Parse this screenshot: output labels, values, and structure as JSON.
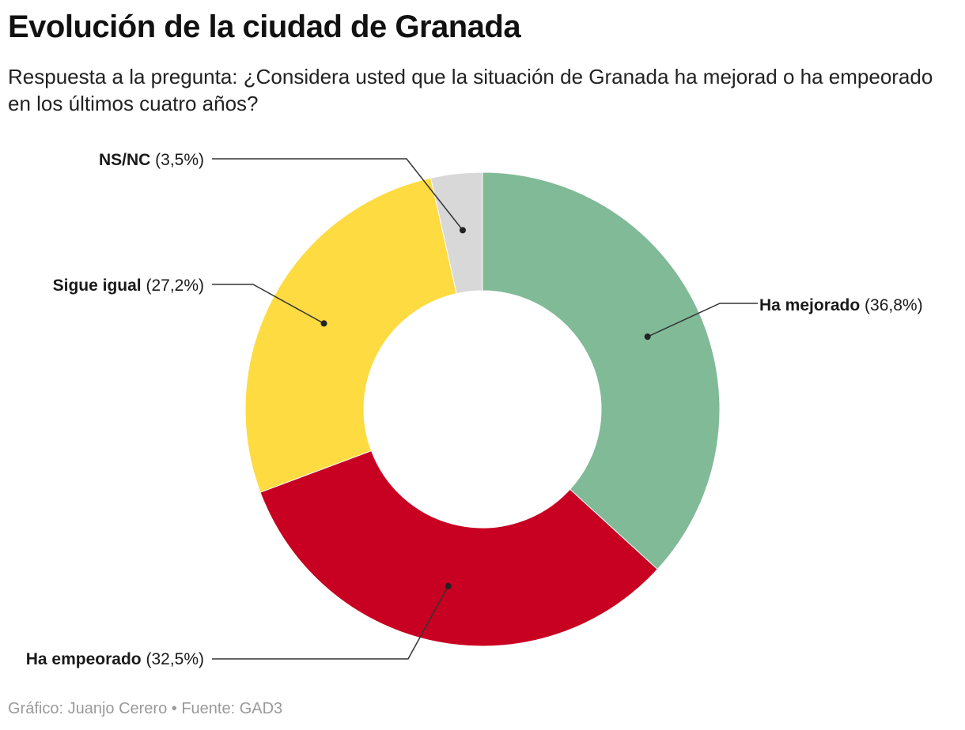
{
  "header": {
    "title": "Evolución de la ciudad de Granada",
    "subtitle": "Respuesta a la pregunta: ¿Considera usted que la situación de Granada ha mejorad o ha empeorado en los últimos cuatro años?"
  },
  "footer": {
    "text": "Gráfico: Juanjo Cerero • Fuente: GAD3"
  },
  "chart_data": {
    "type": "pie",
    "variant": "donut",
    "title": "Evolución de la ciudad de Granada",
    "slices": [
      {
        "name": "Ha mejorado",
        "value": 36.8,
        "display": "(36,8%)",
        "color": "#80ba96"
      },
      {
        "name": "Ha empeorado",
        "value": 32.5,
        "display": "(32,5%)",
        "color": "#c80021"
      },
      {
        "name": "Sigue igual",
        "value": 27.2,
        "display": "(27,2%)",
        "color": "#fedb41"
      },
      {
        "name": "NS/NC",
        "value": 3.5,
        "display": "(3,5%)",
        "color": "#d8d8d8"
      }
    ]
  }
}
